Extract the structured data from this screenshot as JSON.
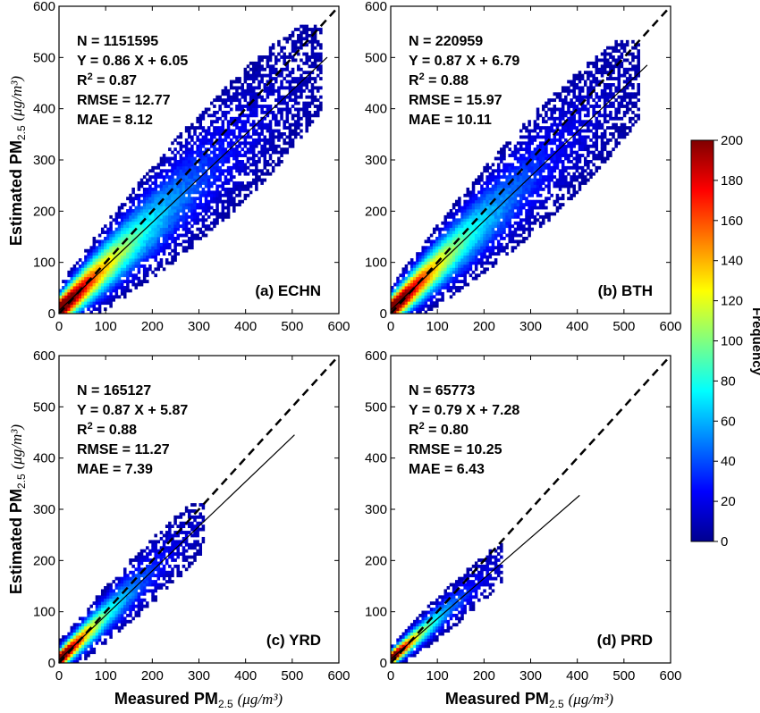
{
  "colorbar": {
    "label": "Frequency",
    "min": 0,
    "max": 200,
    "ticks": [
      "0",
      "20",
      "40",
      "60",
      "80",
      "100",
      "120",
      "140",
      "160",
      "180",
      "200"
    ],
    "colormap": "jet"
  },
  "y_axis_label": {
    "main": "Estimated PM",
    "sub": "2.5",
    "unit": "(μg/m³)"
  },
  "x_axis_label": {
    "main": "Measured PM",
    "sub": "2.5",
    "unit": "(μg/m³)"
  },
  "ticks": [
    "0",
    "100",
    "200",
    "300",
    "400",
    "500",
    "600"
  ],
  "chart_data": [
    {
      "type": "heatmap",
      "region": "(a) ECHN",
      "xlim": [
        0,
        600
      ],
      "ylim": [
        0,
        600
      ],
      "stats": [
        "N = 1151595",
        "Y = 0.86 X + 6.05",
        "R2 = 0.87",
        "RMSE = 12.77",
        "MAE = 8.12"
      ],
      "fit": {
        "slope": 0.86,
        "intercept": 6.05,
        "x_range": [
          0,
          575
        ]
      },
      "one_to_one": true
    },
    {
      "type": "heatmap",
      "region": "(b) BTH",
      "xlim": [
        0,
        600
      ],
      "ylim": [
        0,
        600
      ],
      "stats": [
        "N = 220959",
        "Y = 0.87 X + 6.79",
        "R2 = 0.88",
        "RMSE = 15.97",
        "MAE = 10.11"
      ],
      "fit": {
        "slope": 0.87,
        "intercept": 6.79,
        "x_range": [
          0,
          550
        ]
      },
      "one_to_one": true
    },
    {
      "type": "heatmap",
      "region": "(c) YRD",
      "xlim": [
        0,
        600
      ],
      "ylim": [
        0,
        600
      ],
      "stats": [
        "N = 165127",
        "Y = 0.87 X + 5.87",
        "R2 = 0.88",
        "RMSE = 11.27",
        "MAE = 7.39"
      ],
      "fit": {
        "slope": 0.87,
        "intercept": 5.87,
        "x_range": [
          0,
          505
        ]
      },
      "one_to_one": true
    },
    {
      "type": "heatmap",
      "region": "(d) PRD",
      "xlim": [
        0,
        600
      ],
      "ylim": [
        0,
        600
      ],
      "stats": [
        "N = 65773",
        "Y = 0.79 X + 7.28",
        "R2 = 0.80",
        "RMSE = 10.25",
        "MAE = 6.43"
      ],
      "fit": {
        "slope": 0.79,
        "intercept": 7.28,
        "x_range": [
          0,
          405
        ]
      },
      "one_to_one": true
    }
  ]
}
